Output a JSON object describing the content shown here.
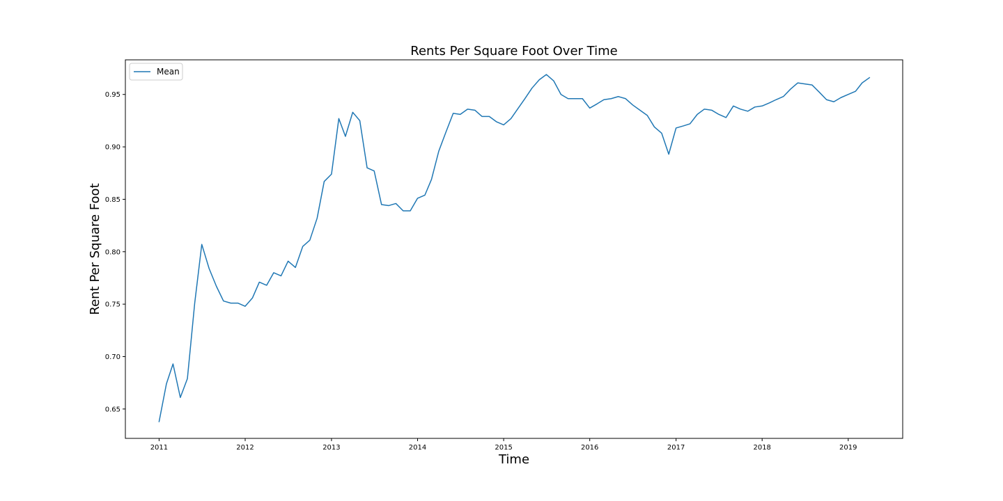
{
  "chart_data": {
    "type": "line",
    "title": "Rents Per Square Foot Over Time",
    "xlabel": "Time",
    "ylabel": "Rent Per Square Foot",
    "xlim": [
      "2010-08-11",
      "2019-08-20"
    ],
    "ylim": [
      0.622,
      0.983
    ],
    "x_ticks": [
      "2011",
      "2012",
      "2013",
      "2014",
      "2015",
      "2016",
      "2017",
      "2018",
      "2019"
    ],
    "y_ticks": [
      "0.65",
      "0.70",
      "0.75",
      "0.80",
      "0.85",
      "0.90",
      "0.95"
    ],
    "legend": {
      "position": "top-left",
      "entries": [
        "Mean"
      ]
    },
    "grid": false,
    "series": [
      {
        "name": "Mean",
        "color": "#1f77b4",
        "x": [
          "2011-01",
          "2011-02",
          "2011-03",
          "2011-04",
          "2011-05",
          "2011-06",
          "2011-07",
          "2011-08",
          "2011-09",
          "2011-10",
          "2011-11",
          "2011-12",
          "2012-01",
          "2012-02",
          "2012-03",
          "2012-04",
          "2012-05",
          "2012-06",
          "2012-07",
          "2012-08",
          "2012-09",
          "2012-10",
          "2012-11",
          "2012-12",
          "2013-01",
          "2013-02",
          "2013-03",
          "2013-04",
          "2013-05",
          "2013-06",
          "2013-07",
          "2013-08",
          "2013-09",
          "2013-10",
          "2013-11",
          "2013-12",
          "2014-01",
          "2014-02",
          "2014-03",
          "2014-04",
          "2014-05",
          "2014-06",
          "2014-07",
          "2014-08",
          "2014-09",
          "2014-10",
          "2014-11",
          "2014-12",
          "2015-01",
          "2015-02",
          "2015-03",
          "2015-04",
          "2015-05",
          "2015-06",
          "2015-07",
          "2015-08",
          "2015-09",
          "2015-10",
          "2015-11",
          "2015-12",
          "2016-01",
          "2016-02",
          "2016-03",
          "2016-04",
          "2016-05",
          "2016-06",
          "2016-07",
          "2016-08",
          "2016-09",
          "2016-10",
          "2016-11",
          "2016-12",
          "2017-01",
          "2017-02",
          "2017-03",
          "2017-04",
          "2017-05",
          "2017-06",
          "2017-07",
          "2017-08",
          "2017-09",
          "2017-10",
          "2017-11",
          "2017-12",
          "2018-01",
          "2018-02",
          "2018-03",
          "2018-04",
          "2018-05",
          "2018-06",
          "2018-07",
          "2018-08",
          "2018-09",
          "2018-10",
          "2018-11",
          "2018-12",
          "2019-01",
          "2019-02",
          "2019-03",
          "2019-04"
        ],
        "y": [
          0.638,
          0.674,
          0.693,
          0.661,
          0.679,
          0.751,
          0.807,
          0.784,
          0.767,
          0.753,
          0.751,
          0.751,
          0.748,
          0.756,
          0.771,
          0.768,
          0.78,
          0.777,
          0.791,
          0.785,
          0.805,
          0.811,
          0.832,
          0.867,
          0.874,
          0.927,
          0.91,
          0.933,
          0.925,
          0.88,
          0.877,
          0.845,
          0.844,
          0.846,
          0.839,
          0.839,
          0.851,
          0.854,
          0.869,
          0.896,
          0.914,
          0.932,
          0.931,
          0.936,
          0.935,
          0.929,
          0.929,
          0.924,
          0.921,
          0.927,
          0.936,
          0.946,
          0.956,
          0.964,
          0.969,
          0.963,
          0.95,
          0.946,
          0.946,
          0.946,
          0.937,
          0.941,
          0.945,
          0.946,
          0.948,
          0.946,
          0.94,
          0.935,
          0.93,
          0.919,
          0.913,
          0.893,
          0.918,
          0.92,
          0.922,
          0.931,
          0.936,
          0.935,
          0.931,
          0.928,
          0.939,
          0.936,
          0.934,
          0.938,
          0.939,
          0.942,
          0.945,
          0.948,
          0.955,
          0.961,
          0.96,
          0.959,
          0.952,
          0.945,
          0.943,
          0.947,
          0.95,
          0.953,
          0.961,
          0.966
        ]
      }
    ]
  }
}
